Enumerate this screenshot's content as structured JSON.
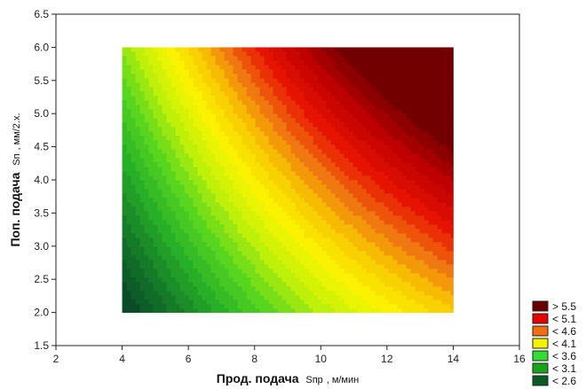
{
  "chart_data": {
    "type": "heatmap",
    "subtype": "filled-contour",
    "xlabel": {
      "main": "Прод. подача",
      "symbol": "Sпр",
      "unit": ", м/мин"
    },
    "ylabel": {
      "main": "Поп. подача",
      "symbol": "Sп",
      "unit": ", мм/2.х."
    },
    "xlim": [
      2,
      16
    ],
    "ylim": [
      1.5,
      6.5
    ],
    "x_ticks": [
      "2",
      "4",
      "6",
      "8",
      "10",
      "12",
      "14",
      "16"
    ],
    "y_ticks": [
      "1.5",
      "2.0",
      "2.5",
      "3.0",
      "3.5",
      "4.0",
      "4.5",
      "5.0",
      "5.5",
      "6.0",
      "6.5"
    ],
    "x_range": [
      4,
      14
    ],
    "y_range": [
      2.0,
      6.0
    ],
    "grid": false,
    "legend_position": "bottom-right",
    "legend": [
      {
        "label": "> 5.5",
        "color": "#6b0000"
      },
      {
        "label": "< 5.1",
        "color": "#e60000"
      },
      {
        "label": "< 4.6",
        "color": "#f07010"
      },
      {
        "label": "< 4.1",
        "color": "#f4f400"
      },
      {
        "label": "< 3.6",
        "color": "#33dd33"
      },
      {
        "label": "< 3.1",
        "color": "#1aa41a"
      },
      {
        "label": "< 2.6",
        "color": "#0a5a25"
      }
    ],
    "z_min": 2.2,
    "z_max": 5.9
  }
}
